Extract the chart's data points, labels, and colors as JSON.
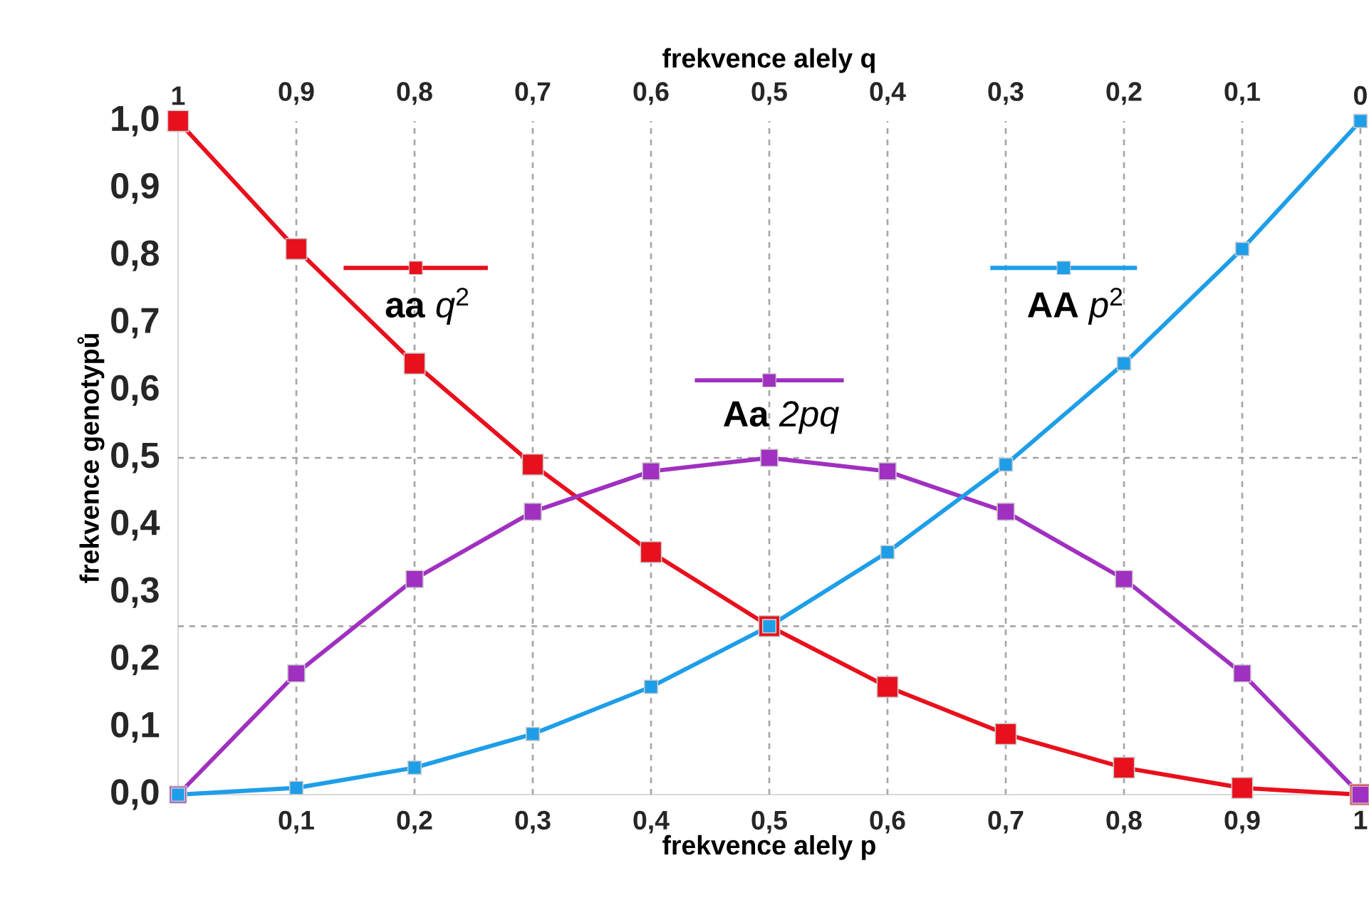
{
  "chart_data": {
    "type": "line",
    "xlabel": "frekvence alely p",
    "x2label": "frekvence alely q",
    "ylabel": "frekvence genotypů",
    "x": [
      0,
      0.1,
      0.2,
      0.3,
      0.4,
      0.5,
      0.6,
      0.7,
      0.8,
      0.9,
      1
    ],
    "series": [
      {
        "name": "**aa** *q*$^{2}$",
        "color": "#e8101c",
        "values": [
          1,
          0.81,
          0.64,
          0.49,
          0.36,
          0.25,
          0.16,
          0.09,
          0.04,
          0.01,
          0
        ]
      },
      {
        "name": "**Aa** *2pq*",
        "color": "#a030c0",
        "values": [
          0,
          0.18,
          0.32,
          0.42,
          0.48,
          0.5,
          0.48,
          0.42,
          0.32,
          0.18,
          0
        ]
      },
      {
        "name": "**AA** *p*$^{2}$",
        "color": "#1e9ee8",
        "values": [
          0,
          0.01,
          0.04,
          0.09,
          0.16,
          0.25,
          0.36,
          0.49,
          0.64,
          0.81,
          1
        ]
      }
    ],
    "xlim": [
      0,
      1
    ],
    "ylim": [
      0,
      1
    ],
    "x2lim": [
      1,
      0
    ],
    "xticks": [
      {
        "value": 0.1,
        "label": "0,1"
      },
      {
        "value": 0.2,
        "label": "0,2"
      },
      {
        "value": 0.3,
        "label": "0,3"
      },
      {
        "value": 0.4,
        "label": "0,4"
      },
      {
        "value": 0.5,
        "label": "0,5"
      },
      {
        "value": 0.6,
        "label": "0,6"
      },
      {
        "value": 0.7,
        "label": "0,7"
      },
      {
        "value": 0.8,
        "label": "0,8"
      },
      {
        "value": 0.9,
        "label": "0,9"
      },
      {
        "value": 1,
        "label": "1"
      }
    ],
    "x2ticks": [
      {
        "value": 1,
        "label": "1"
      },
      {
        "value": 0.9,
        "label": "0,9"
      },
      {
        "value": 0.8,
        "label": "0,8"
      },
      {
        "value": 0.7,
        "label": "0,7"
      },
      {
        "value": 0.6,
        "label": "0,6"
      },
      {
        "value": 0.5,
        "label": "0,5"
      },
      {
        "value": 0.4,
        "label": "0,4"
      },
      {
        "value": 0.3,
        "label": "0,3"
      },
      {
        "value": 0.2,
        "label": "0,2"
      },
      {
        "value": 0.1,
        "label": "0,1"
      },
      {
        "value": 0,
        "label": "0"
      }
    ],
    "yticks": [
      {
        "value": 0,
        "label": "0,0"
      },
      {
        "value": 0.1,
        "label": "0,1"
      },
      {
        "value": 0.2,
        "label": "0,2"
      },
      {
        "value": 0.3,
        "label": "0,3"
      },
      {
        "value": 0.4,
        "label": "0,4"
      },
      {
        "value": 0.5,
        "label": "0,5"
      },
      {
        "value": 0.6,
        "label": "0,6"
      },
      {
        "value": 0.7,
        "label": "0,7"
      },
      {
        "value": 0.8,
        "label": "0,8"
      },
      {
        "value": 0.9,
        "label": "0,9"
      },
      {
        "value": 1,
        "label": "1,0"
      }
    ],
    "ref_lines": [
      {
        "axis": "y",
        "value": 0.5,
        "color": "#a0a0a0",
        "line_style": "dashed"
      },
      {
        "axis": "y",
        "value": 0.25,
        "color": "#a0a0a0",
        "line_style": "dashed"
      }
    ],
    "grid": "x",
    "legend": "top",
    "marker": "square",
    "line_style": "solid"
  }
}
